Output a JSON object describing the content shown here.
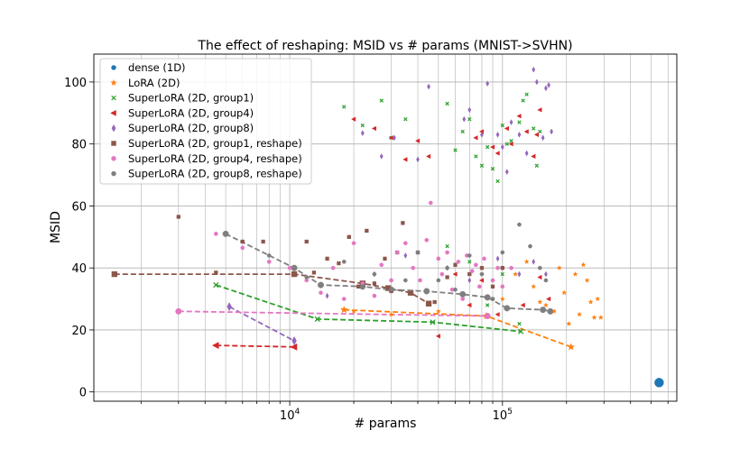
{
  "chart_data": {
    "type": "scatter",
    "title": "The effect of reshaping: MSID vs # params (MNIST->SVHN)",
    "xlabel": "# params",
    "ylabel": "MSID",
    "xscale": "log",
    "xlim": [
      1200,
      660000
    ],
    "ylim": [
      -3,
      109
    ],
    "x_tick_labels": [
      {
        "value": 10000,
        "base": "10",
        "exp": "4"
      },
      {
        "value": 100000,
        "base": "10",
        "exp": "5"
      }
    ],
    "y_ticks": [
      0,
      20,
      40,
      60,
      80,
      100
    ],
    "grid": true,
    "legend_position": "upper-left",
    "series": [
      {
        "name": "dense (1D)",
        "color": "#1f77b4",
        "marker": "circle",
        "line": false,
        "points": [
          [
            545000,
            3
          ]
        ]
      },
      {
        "name": "LoRA (2D)",
        "color": "#ff7f0e",
        "marker": "star",
        "line_points": [
          [
            18000,
            26.5
          ],
          [
            84000,
            24.5
          ],
          [
            210000,
            14.5
          ]
        ],
        "points": [
          [
            20000,
            26
          ],
          [
            30000,
            25
          ],
          [
            50000,
            26
          ],
          [
            84000,
            24.5
          ],
          [
            100000,
            30
          ],
          [
            115000,
            38
          ],
          [
            130000,
            42
          ],
          [
            140000,
            34
          ],
          [
            150000,
            29
          ],
          [
            160000,
            28
          ],
          [
            175000,
            26
          ],
          [
            185000,
            40
          ],
          [
            195000,
            32
          ],
          [
            205000,
            22
          ],
          [
            210000,
            14.5
          ],
          [
            220000,
            38
          ],
          [
            230000,
            25
          ],
          [
            240000,
            41
          ],
          [
            250000,
            36
          ],
          [
            260000,
            29
          ],
          [
            270000,
            24
          ],
          [
            280000,
            30
          ],
          [
            290000,
            24
          ]
        ]
      },
      {
        "name": "SuperLoRA (2D, group1)",
        "color": "#2ca02c",
        "marker": "x",
        "line_points": [
          [
            4500,
            34.5
          ],
          [
            13500,
            23.5
          ],
          [
            47000,
            22.5
          ],
          [
            122000,
            19.5
          ]
        ],
        "points": [
          [
            4500,
            34.5
          ],
          [
            13500,
            23.5
          ],
          [
            47000,
            22.5
          ],
          [
            122000,
            19.5
          ],
          [
            18000,
            92
          ],
          [
            22000,
            86
          ],
          [
            27000,
            94
          ],
          [
            30000,
            82
          ],
          [
            35000,
            88
          ],
          [
            55000,
            93
          ],
          [
            60000,
            78
          ],
          [
            65000,
            84
          ],
          [
            70000,
            88
          ],
          [
            75000,
            76
          ],
          [
            80000,
            73
          ],
          [
            85000,
            79
          ],
          [
            90000,
            72
          ],
          [
            95000,
            68
          ],
          [
            100000,
            86
          ],
          [
            105000,
            80
          ],
          [
            110000,
            81
          ],
          [
            120000,
            87
          ],
          [
            125000,
            94
          ],
          [
            130000,
            96
          ],
          [
            140000,
            85
          ],
          [
            145000,
            73
          ],
          [
            150000,
            84
          ],
          [
            55000,
            47
          ],
          [
            70000,
            42
          ],
          [
            85000,
            28
          ],
          [
            100000,
            38
          ],
          [
            120000,
            22
          ],
          [
            90000,
            30
          ]
        ]
      },
      {
        "name": "SuperLoRA (2D, group4)",
        "color": "#d62728",
        "marker": "triangle-left",
        "line_points": [
          [
            4500,
            15
          ],
          [
            10500,
            14.5
          ]
        ],
        "points": [
          [
            4500,
            15
          ],
          [
            10500,
            14.5
          ],
          [
            20000,
            88
          ],
          [
            25000,
            85
          ],
          [
            30000,
            82
          ],
          [
            35000,
            75
          ],
          [
            40000,
            81
          ],
          [
            45000,
            76
          ],
          [
            75000,
            82
          ],
          [
            80000,
            84
          ],
          [
            90000,
            79
          ],
          [
            95000,
            77
          ],
          [
            105000,
            85
          ],
          [
            110000,
            80
          ],
          [
            120000,
            89
          ],
          [
            130000,
            84
          ],
          [
            140000,
            76
          ],
          [
            145000,
            83
          ],
          [
            150000,
            91
          ],
          [
            50000,
            18
          ],
          [
            60000,
            38
          ],
          [
            70000,
            28
          ],
          [
            80000,
            36
          ],
          [
            95000,
            25
          ],
          [
            125000,
            28
          ],
          [
            150000,
            37
          ],
          [
            165000,
            30
          ]
        ]
      },
      {
        "name": "SuperLoRA (2D, group8)",
        "color": "#9467bd",
        "marker": "diamond",
        "line_points": [
          [
            5200,
            27.5
          ],
          [
            10500,
            16.5
          ]
        ],
        "points": [
          [
            5200,
            27.5
          ],
          [
            10500,
            16.5
          ],
          [
            22000,
            83.5
          ],
          [
            27000,
            76
          ],
          [
            31000,
            82
          ],
          [
            40000,
            75
          ],
          [
            45000,
            98.5
          ],
          [
            66000,
            88
          ],
          [
            70000,
            91
          ],
          [
            80000,
            83
          ],
          [
            85000,
            99.5
          ],
          [
            95000,
            83
          ],
          [
            100000,
            79
          ],
          [
            105000,
            71
          ],
          [
            110000,
            87
          ],
          [
            120000,
            83
          ],
          [
            130000,
            77
          ],
          [
            140000,
            104
          ],
          [
            145000,
            100
          ],
          [
            155000,
            82
          ],
          [
            160000,
            98
          ],
          [
            165000,
            99
          ],
          [
            170000,
            84
          ],
          [
            15000,
            31
          ],
          [
            25000,
            38
          ],
          [
            35000,
            44
          ],
          [
            55000,
            40
          ],
          [
            70000,
            36
          ],
          [
            95000,
            43
          ],
          [
            120000,
            38
          ],
          [
            140000,
            42
          ],
          [
            160000,
            38
          ]
        ]
      },
      {
        "name": "SuperLoRA (2D, group1, reshape)",
        "color": "#8c564b",
        "marker": "square",
        "line_points": [
          [
            1500,
            38
          ],
          [
            10500,
            38
          ],
          [
            22000,
            35
          ],
          [
            29000,
            33.5
          ],
          [
            37000,
            32
          ],
          [
            45000,
            28.5
          ]
        ],
        "points": [
          [
            1500,
            38
          ],
          [
            3000,
            56.5
          ],
          [
            4500,
            38.5
          ],
          [
            6000,
            48.5
          ],
          [
            7500,
            48.5
          ],
          [
            10500,
            38
          ],
          [
            12000,
            48.5
          ],
          [
            13000,
            38.5
          ],
          [
            15000,
            43
          ],
          [
            17000,
            41.5
          ],
          [
            19000,
            50
          ],
          [
            21000,
            34
          ],
          [
            22000,
            35
          ],
          [
            23000,
            52
          ],
          [
            25000,
            35
          ],
          [
            28000,
            43
          ],
          [
            29000,
            33.5
          ],
          [
            30000,
            32.5
          ],
          [
            32000,
            45
          ],
          [
            34000,
            54.5
          ],
          [
            37000,
            32
          ],
          [
            40000,
            45
          ],
          [
            45000,
            28.5
          ],
          [
            48000,
            29
          ],
          [
            55000,
            37
          ],
          [
            60000,
            41
          ],
          [
            70000,
            38
          ],
          [
            80000,
            40
          ],
          [
            90000,
            34
          ],
          [
            100000,
            40
          ]
        ]
      },
      {
        "name": "SuperLoRA (2D, group4, reshape)",
        "color": "#e377c2",
        "marker": "circle",
        "line_points": [
          [
            3000,
            26
          ],
          [
            85000,
            24.5
          ]
        ],
        "points": [
          [
            3000,
            26
          ],
          [
            4500,
            51
          ],
          [
            6000,
            46.5
          ],
          [
            8000,
            42
          ],
          [
            10000,
            40
          ],
          [
            12000,
            36
          ],
          [
            14000,
            32
          ],
          [
            16000,
            40
          ],
          [
            18000,
            30
          ],
          [
            20000,
            48
          ],
          [
            22000,
            35
          ],
          [
            25000,
            31
          ],
          [
            27000,
            41
          ],
          [
            30000,
            36
          ],
          [
            32000,
            45
          ],
          [
            35000,
            48
          ],
          [
            38000,
            40
          ],
          [
            41000,
            36
          ],
          [
            44000,
            49
          ],
          [
            46000,
            61
          ],
          [
            50000,
            43
          ],
          [
            52000,
            38
          ],
          [
            55000,
            45
          ],
          [
            58000,
            33
          ],
          [
            62000,
            42
          ],
          [
            65000,
            30
          ],
          [
            68000,
            44
          ],
          [
            72000,
            39
          ],
          [
            75000,
            41
          ],
          [
            78000,
            34
          ],
          [
            82000,
            43
          ],
          [
            85000,
            24.5
          ],
          [
            90000,
            36
          ],
          [
            95000,
            40
          ],
          [
            100000,
            34
          ],
          [
            110000,
            40
          ]
        ]
      },
      {
        "name": "SuperLoRA (2D, group8, reshape)",
        "color": "#7f7f7f",
        "marker": "circle",
        "line_points": [
          [
            5000,
            51
          ],
          [
            10500,
            40
          ],
          [
            14000,
            34.5
          ],
          [
            22000,
            34
          ],
          [
            30000,
            33
          ],
          [
            44000,
            32.5
          ],
          [
            65000,
            31.5
          ],
          [
            85000,
            30.5
          ],
          [
            105000,
            27
          ],
          [
            155000,
            26.5
          ],
          [
            168000,
            26
          ]
        ],
        "points": [
          [
            5000,
            51
          ],
          [
            10500,
            40
          ],
          [
            14000,
            34.5
          ],
          [
            22000,
            34
          ],
          [
            30000,
            33
          ],
          [
            44000,
            32.5
          ],
          [
            65000,
            31.5
          ],
          [
            85000,
            30.5
          ],
          [
            105000,
            27
          ],
          [
            155000,
            26.5
          ],
          [
            168000,
            26
          ],
          [
            8000,
            44
          ],
          [
            12000,
            37
          ],
          [
            18000,
            42
          ],
          [
            25000,
            38
          ],
          [
            35000,
            36
          ],
          [
            40000,
            45
          ],
          [
            50000,
            36
          ],
          [
            55000,
            40
          ],
          [
            60000,
            33
          ],
          [
            70000,
            44
          ],
          [
            80000,
            38
          ],
          [
            90000,
            30
          ],
          [
            100000,
            45
          ],
          [
            120000,
            54
          ],
          [
            135000,
            47
          ],
          [
            150000,
            40
          ],
          [
            160000,
            36
          ]
        ]
      }
    ]
  }
}
